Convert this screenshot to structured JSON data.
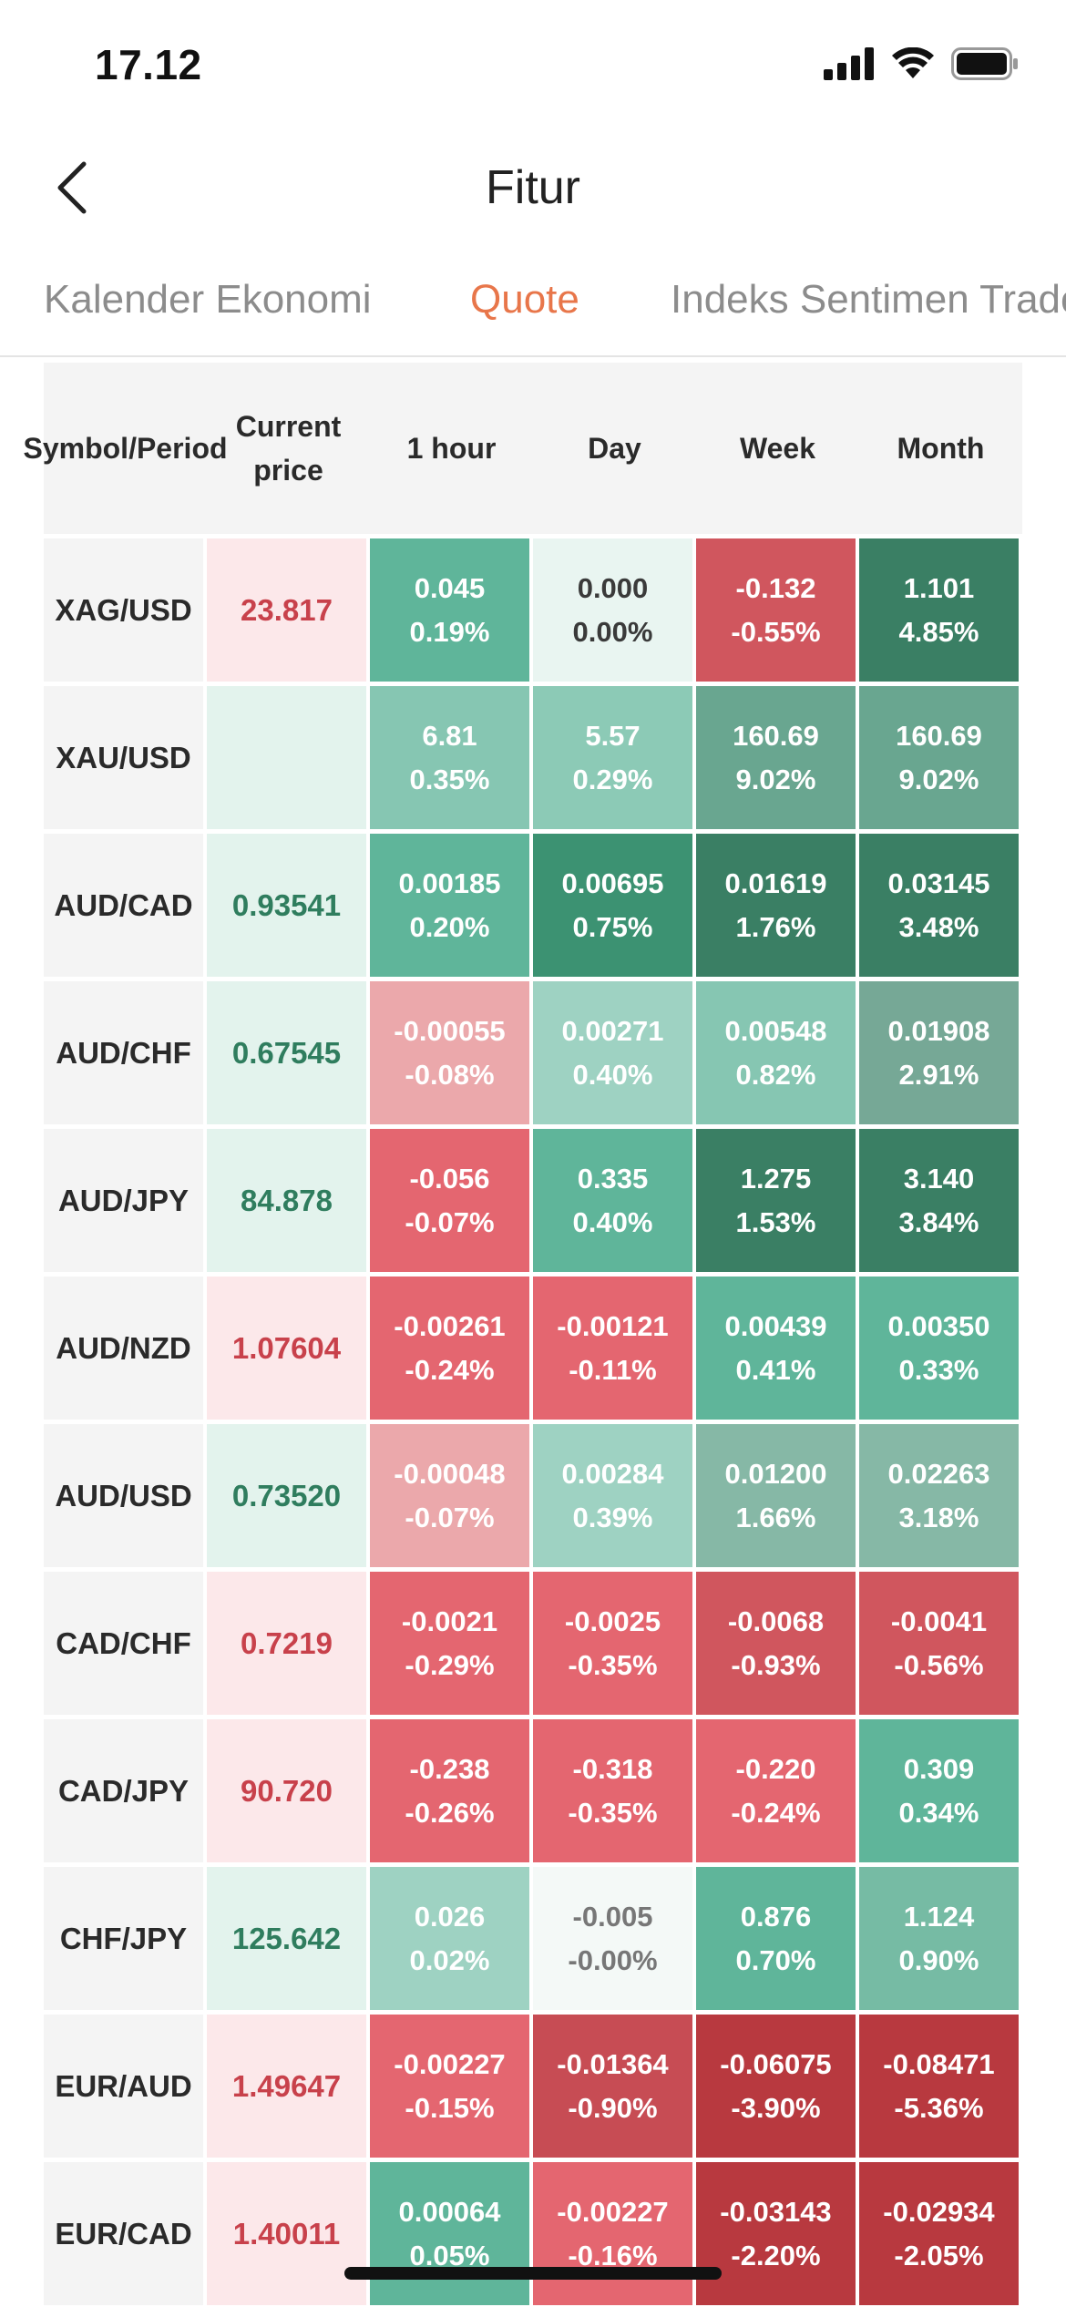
{
  "status_bar": {
    "time": "17.12"
  },
  "nav": {
    "title": "Fitur"
  },
  "tabs": [
    {
      "label": "Kalender Ekonomi",
      "active": false
    },
    {
      "label": "Quote",
      "active": true
    },
    {
      "label": "Indeks Sentimen Trader",
      "active": false
    }
  ],
  "table": {
    "headers": [
      "Symbol/Period",
      "Current price",
      "1 hour",
      "Day",
      "Week",
      "Month"
    ],
    "rows": [
      {
        "symbol": "XAG/USD",
        "price": "23.817",
        "price_dir": "down",
        "cells": [
          [
            "0.045",
            "0.19%",
            "#5fb59a"
          ],
          [
            "0.000",
            "0.00%",
            "#e9f5f1"
          ],
          [
            "-0.132",
            "-0.55%",
            "#d0565e"
          ],
          [
            "1.101",
            "4.85%",
            "#3a7f64"
          ]
        ]
      },
      {
        "symbol": "XAU/USD",
        "price": "",
        "price_dir": "up",
        "cells": [
          [
            "6.81",
            "0.35%",
            "#86c6b2"
          ],
          [
            "5.57",
            "0.29%",
            "#8ccab6"
          ],
          [
            "160.69",
            "9.02%",
            "#69a690"
          ],
          [
            "160.69",
            "9.02%",
            "#69a690"
          ]
        ]
      },
      {
        "symbol": "AUD/CAD",
        "price": "0.93541",
        "price_dir": "up",
        "cells": [
          [
            "0.00185",
            "0.20%",
            "#5fb59a"
          ],
          [
            "0.00695",
            "0.75%",
            "#3c9272"
          ],
          [
            "0.01619",
            "1.76%",
            "#3a7f64"
          ],
          [
            "0.03145",
            "3.48%",
            "#3a7f64"
          ]
        ]
      },
      {
        "symbol": "AUD/CHF",
        "price": "0.67545",
        "price_dir": "up",
        "cells": [
          [
            "-0.00055",
            "-0.08%",
            "#eba8ab"
          ],
          [
            "0.00271",
            "0.40%",
            "#9ed2c2"
          ],
          [
            "0.00548",
            "0.82%",
            "#86c6b2"
          ],
          [
            "0.01908",
            "2.91%",
            "#76a896"
          ]
        ]
      },
      {
        "symbol": "AUD/JPY",
        "price": "84.878",
        "price_dir": "up",
        "cells": [
          [
            "-0.056",
            "-0.07%",
            "#e46670"
          ],
          [
            "0.335",
            "0.40%",
            "#5fb59a"
          ],
          [
            "1.275",
            "1.53%",
            "#3a7f64"
          ],
          [
            "3.140",
            "3.84%",
            "#3a7f64"
          ]
        ]
      },
      {
        "symbol": "AUD/NZD",
        "price": "1.07604",
        "price_dir": "down",
        "cells": [
          [
            "-0.00261",
            "-0.24%",
            "#e46670"
          ],
          [
            "-0.00121",
            "-0.11%",
            "#e46670"
          ],
          [
            "0.00439",
            "0.41%",
            "#5fb59a"
          ],
          [
            "0.00350",
            "0.33%",
            "#5fb59a"
          ]
        ]
      },
      {
        "symbol": "AUD/USD",
        "price": "0.73520",
        "price_dir": "up",
        "cells": [
          [
            "-0.00048",
            "-0.07%",
            "#eba8ab"
          ],
          [
            "0.00284",
            "0.39%",
            "#9ed2c2"
          ],
          [
            "0.01200",
            "1.66%",
            "#86b8a6"
          ],
          [
            "0.02263",
            "3.18%",
            "#86b8a6"
          ]
        ]
      },
      {
        "symbol": "CAD/CHF",
        "price": "0.7219",
        "price_dir": "down",
        "cells": [
          [
            "-0.0021",
            "-0.29%",
            "#e46670"
          ],
          [
            "-0.0025",
            "-0.35%",
            "#e46670"
          ],
          [
            "-0.0068",
            "-0.93%",
            "#d0565e"
          ],
          [
            "-0.0041",
            "-0.56%",
            "#d0565e"
          ]
        ]
      },
      {
        "symbol": "CAD/JPY",
        "price": "90.720",
        "price_dir": "down",
        "cells": [
          [
            "-0.238",
            "-0.26%",
            "#e46670"
          ],
          [
            "-0.318",
            "-0.35%",
            "#e46670"
          ],
          [
            "-0.220",
            "-0.24%",
            "#e46670"
          ],
          [
            "0.309",
            "0.34%",
            "#5fb59a"
          ]
        ]
      },
      {
        "symbol": "CHF/JPY",
        "price": "125.642",
        "price_dir": "up",
        "cells": [
          [
            "0.026",
            "0.02%",
            "#9ed2c2"
          ],
          [
            "-0.005",
            "-0.00%",
            "#f4f9f7"
          ],
          [
            "0.876",
            "0.70%",
            "#5fb59a"
          ],
          [
            "1.124",
            "0.90%",
            "#76bba4"
          ]
        ]
      },
      {
        "symbol": "EUR/AUD",
        "price": "1.49647",
        "price_dir": "down",
        "cells": [
          [
            "-0.00227",
            "-0.15%",
            "#e46670"
          ],
          [
            "-0.01364",
            "-0.90%",
            "#c74c54"
          ],
          [
            "-0.06075",
            "-3.90%",
            "#b8393f"
          ],
          [
            "-0.08471",
            "-5.36%",
            "#b8393f"
          ]
        ]
      },
      {
        "symbol": "EUR/CAD",
        "price": "1.40011",
        "price_dir": "down",
        "cells": [
          [
            "0.00064",
            "0.05%",
            "#5fb59a"
          ],
          [
            "-0.00227",
            "-0.16%",
            "#e46670"
          ],
          [
            "-0.03143",
            "-2.20%",
            "#b8393f"
          ],
          [
            "-0.02934",
            "-2.05%",
            "#b8393f"
          ]
        ]
      }
    ]
  },
  "colors": {
    "accent": "#e8764a",
    "price_up_bg": "#e3f3ed",
    "price_up_text": "#2f7d5e",
    "price_down_bg": "#fce8ea",
    "price_down_text": "#c8414b"
  }
}
